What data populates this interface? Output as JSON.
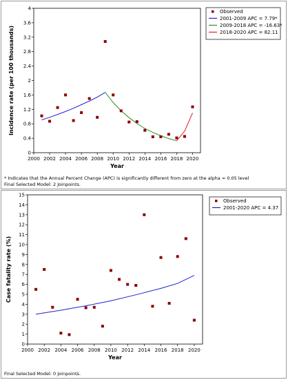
{
  "chart_data": [
    {
      "type": "scatter",
      "xlabel": "Year",
      "ylabel": "Incidence rate (per 100 thousands)",
      "xlim": [
        2000,
        2021
      ],
      "ylim": [
        0,
        4
      ],
      "x_ticks": [
        "2000",
        "2002",
        "2004",
        "2006",
        "2008",
        "2010",
        "2012",
        "2014",
        "2016",
        "2018",
        "2020"
      ],
      "y_ticks": [
        "0",
        "0.4",
        "0.8",
        "1.2",
        "1.6",
        "2",
        "2.4",
        "2.8",
        "3.2",
        "3.6",
        "4"
      ],
      "legend_position": "top-right",
      "observed": {
        "name": "Observed",
        "color": "#8b0000",
        "x": [
          2001,
          2002,
          2003,
          2004,
          2005,
          2006,
          2007,
          2008,
          2009,
          2010,
          2011,
          2012,
          2013,
          2014,
          2015,
          2016,
          2017,
          2018,
          2019,
          2020
        ],
        "y": [
          1.02,
          0.87,
          1.25,
          1.6,
          0.89,
          1.11,
          1.5,
          0.98,
          3.08,
          1.6,
          1.16,
          0.85,
          0.86,
          0.62,
          0.44,
          0.44,
          0.51,
          0.41,
          0.45,
          1.27
        ]
      },
      "segments": [
        {
          "name": "2001-2009 APC =  7.79*",
          "color": "#1f1fcf",
          "x": [
            2001,
            2002,
            2003,
            2004,
            2005,
            2006,
            2007,
            2008,
            2009
          ],
          "y": [
            0.91,
            0.98,
            1.06,
            1.14,
            1.23,
            1.33,
            1.43,
            1.54,
            1.67
          ]
        },
        {
          "name": "2009-2018 APC = -16.63*",
          "color": "#2e8b2e",
          "x": [
            2009,
            2010,
            2011,
            2012,
            2013,
            2014,
            2015,
            2016,
            2017,
            2018
          ],
          "y": [
            1.67,
            1.39,
            1.16,
            0.97,
            0.81,
            0.67,
            0.56,
            0.47,
            0.39,
            0.33
          ]
        },
        {
          "name": "2018-2020 APC =  82.11",
          "color": "#e02020",
          "x": [
            2018,
            2019,
            2020
          ],
          "y": [
            0.33,
            0.6,
            1.1
          ]
        }
      ],
      "footnotes": [
        "* Indicates that the Annual Percent Change (APC) is significantly different from zero at the alpha = 0.05 level",
        "Final Selected Model: 2 Joinpoints."
      ]
    },
    {
      "type": "scatter",
      "xlabel": "Year",
      "ylabel": "Case fatality rate (%)",
      "xlim": [
        2000,
        2021
      ],
      "ylim": [
        0,
        15
      ],
      "x_ticks": [
        "2000",
        "2002",
        "2004",
        "2006",
        "2008",
        "2010",
        "2012",
        "2014",
        "2016",
        "2018",
        "2020"
      ],
      "y_ticks": [
        "0",
        "1",
        "2",
        "3",
        "4",
        "5",
        "6",
        "7",
        "8",
        "9",
        "10",
        "11",
        "12",
        "13",
        "14",
        "15"
      ],
      "legend_position": "top-right",
      "observed": {
        "name": "Observed",
        "color": "#8b0000",
        "x": [
          2001,
          2002,
          2003,
          2004,
          2005,
          2006,
          2007,
          2008,
          2009,
          2010,
          2011,
          2012,
          2013,
          2014,
          2015,
          2016,
          2017,
          2018,
          2019,
          2020
        ],
        "y": [
          5.5,
          7.5,
          3.7,
          1.1,
          0.95,
          4.5,
          3.65,
          3.7,
          1.8,
          7.4,
          6.5,
          6.0,
          5.9,
          13.0,
          3.8,
          8.7,
          4.1,
          8.8,
          10.6,
          2.4
        ]
      },
      "segments": [
        {
          "name": "2001-2020 APC =  4.37",
          "color": "#1f1fcf",
          "x": [
            2001,
            2004,
            2007,
            2010,
            2013,
            2016,
            2018,
            2020
          ],
          "y": [
            3.0,
            3.4,
            3.85,
            4.35,
            4.95,
            5.6,
            6.1,
            6.9
          ]
        }
      ],
      "footnotes": [
        "Final Selected Model: 0 Joinpoints."
      ]
    }
  ]
}
